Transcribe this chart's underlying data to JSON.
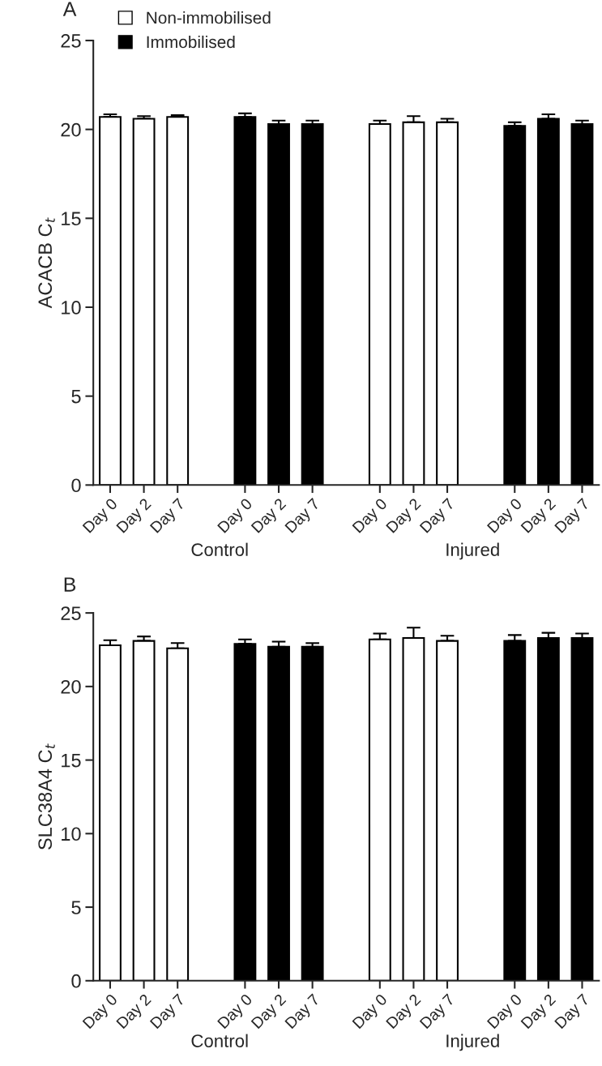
{
  "chart_data": [
    {
      "type": "bar",
      "title": "A",
      "ylabel": "ACACB C$_{t}$",
      "categories": [
        "Day 0",
        "Day 2",
        "Day 7",
        null,
        "Day 0",
        "Day 2",
        "Day 7",
        null,
        "Day 0",
        "Day 2",
        "Day 7",
        null,
        "Day 0",
        "Day 2",
        "Day 7"
      ],
      "series": [
        {
          "name": "Non-immobilised",
          "color": "#ffffff",
          "values": [
            20.7,
            20.6,
            20.7,
            null,
            null,
            null,
            null,
            null,
            20.3,
            20.4,
            20.4,
            null,
            null,
            null,
            null
          ],
          "errors": [
            [
              20.7,
              20.85
            ],
            [
              20.6,
              20.75
            ],
            [
              20.7,
              20.8
            ],
            null,
            null,
            null,
            null,
            null,
            [
              20.3,
              20.5
            ],
            [
              20.4,
              20.75
            ],
            [
              20.4,
              20.6
            ],
            null,
            null,
            null,
            null
          ]
        },
        {
          "name": "Immobilised",
          "color": "#000000",
          "values": [
            null,
            null,
            null,
            null,
            20.7,
            20.3,
            20.3,
            null,
            null,
            null,
            null,
            null,
            20.2,
            20.6,
            20.3
          ],
          "errors": [
            null,
            null,
            null,
            null,
            [
              20.7,
              20.9
            ],
            [
              20.3,
              20.5
            ],
            [
              20.3,
              20.5
            ],
            null,
            null,
            null,
            null,
            null,
            [
              20.2,
              20.4
            ],
            [
              20.6,
              20.85
            ],
            [
              20.3,
              20.5
            ]
          ]
        }
      ],
      "ylim": [
        0,
        25
      ],
      "yticks": [
        0,
        5,
        10,
        15,
        20,
        25
      ],
      "grid": false,
      "legend": "top left",
      "annotations": [
        "Control",
        "Injured"
      ]
    },
    {
      "type": "bar",
      "title": "B",
      "ylabel": "SLC38A4 C$_{t}$",
      "categories": [
        "Day 0",
        "Day 2",
        "Day 7",
        null,
        "Day 0",
        "Day 2",
        "Day 7",
        null,
        "Day 0",
        "Day 2",
        "Day 7",
        null,
        "Day 0",
        "Day 2",
        "Day 7"
      ],
      "series": [
        {
          "color": "#ffffff",
          "values": [
            22.8,
            23.1,
            22.6,
            null,
            null,
            null,
            null,
            null,
            23.2,
            23.3,
            23.1,
            null,
            null,
            null,
            null
          ],
          "errors": [
            [
              22.8,
              23.15
            ],
            [
              23.1,
              23.4
            ],
            [
              22.6,
              22.95
            ],
            null,
            null,
            null,
            null,
            null,
            [
              23.2,
              23.6
            ],
            [
              23.3,
              24.0
            ],
            [
              23.1,
              23.45
            ],
            null,
            null,
            null,
            null
          ]
        },
        {
          "color": "#000000",
          "values": [
            null,
            null,
            null,
            null,
            22.9,
            22.7,
            22.7,
            null,
            null,
            null,
            null,
            null,
            23.1,
            23.3,
            23.3
          ],
          "errors": [
            null,
            null,
            null,
            null,
            [
              22.9,
              23.2
            ],
            [
              22.7,
              23.05
            ],
            [
              22.7,
              22.95
            ],
            null,
            null,
            null,
            null,
            null,
            [
              23.1,
              23.5
            ],
            [
              23.3,
              23.65
            ],
            [
              23.3,
              23.6
            ]
          ]
        }
      ],
      "ylim": [
        0,
        25
      ],
      "yticks": [
        0,
        5,
        10,
        15,
        20,
        25
      ],
      "grid": false,
      "legend": false,
      "annotations": [
        "Control",
        "Injured"
      ]
    }
  ]
}
